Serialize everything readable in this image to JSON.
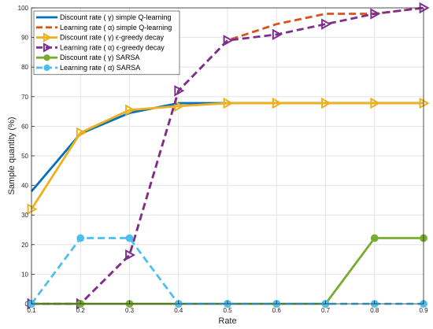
{
  "chart_data": {
    "type": "line",
    "x": [
      0.1,
      0.2,
      0.3,
      0.4,
      0.5,
      0.6,
      0.7,
      0.8,
      0.9
    ],
    "xlabel": "Rate",
    "ylabel": "Sample quantity (%)",
    "xlim": [
      0.1,
      0.9
    ],
    "ylim": [
      0,
      100
    ],
    "xticks": [
      "0.1",
      "0.2",
      "0.3",
      "0.4",
      "0.5",
      "0.6",
      "0.7",
      "0.8",
      "0.9"
    ],
    "yticks": [
      "0",
      "10",
      "20",
      "30",
      "40",
      "50",
      "60",
      "70",
      "80",
      "90",
      "100"
    ],
    "grid": true,
    "legend_position": "top-left",
    "series": [
      {
        "name": "Discount rate ( γ) simple Q-learning",
        "color": "#0072bd",
        "dash": "solid",
        "marker": "none",
        "values": [
          38,
          57.5,
          64.5,
          67.8,
          67.8,
          67.8,
          67.8,
          67.8,
          67.8
        ]
      },
      {
        "name": "Learning rate ( α) simple Q-learning",
        "color": "#d95319",
        "dash": "dashed",
        "marker": "none",
        "values": [
          0,
          0,
          16.5,
          72,
          89,
          94.5,
          98,
          98,
          100
        ]
      },
      {
        "name": "Discount rate ( γ) ϵ-greedy decay",
        "color": "#edb120",
        "dash": "solid",
        "marker": "triangle-right",
        "values": [
          32,
          57.8,
          65.5,
          66.8,
          67.8,
          67.8,
          67.8,
          67.8,
          67.8
        ]
      },
      {
        "name": "Learning rate ( α) ϵ-greedy decay",
        "color": "#7e2f8e",
        "dash": "dashed",
        "marker": "triangle-right",
        "values": [
          0,
          0,
          16.5,
          72,
          89,
          91,
          94.5,
          98,
          100
        ]
      },
      {
        "name": "Discount rate ( γ) SARSA",
        "color": "#77ac30",
        "dash": "solid",
        "marker": "circle",
        "values": [
          0,
          0,
          0,
          0,
          0,
          0,
          0,
          22.2,
          22.2
        ]
      },
      {
        "name": "Learning rate ( α) SARSA",
        "color": "#4dbeee",
        "dash": "dashed",
        "marker": "circle",
        "values": [
          0,
          22.2,
          22.2,
          0,
          0,
          0,
          0,
          0,
          0
        ]
      }
    ]
  }
}
